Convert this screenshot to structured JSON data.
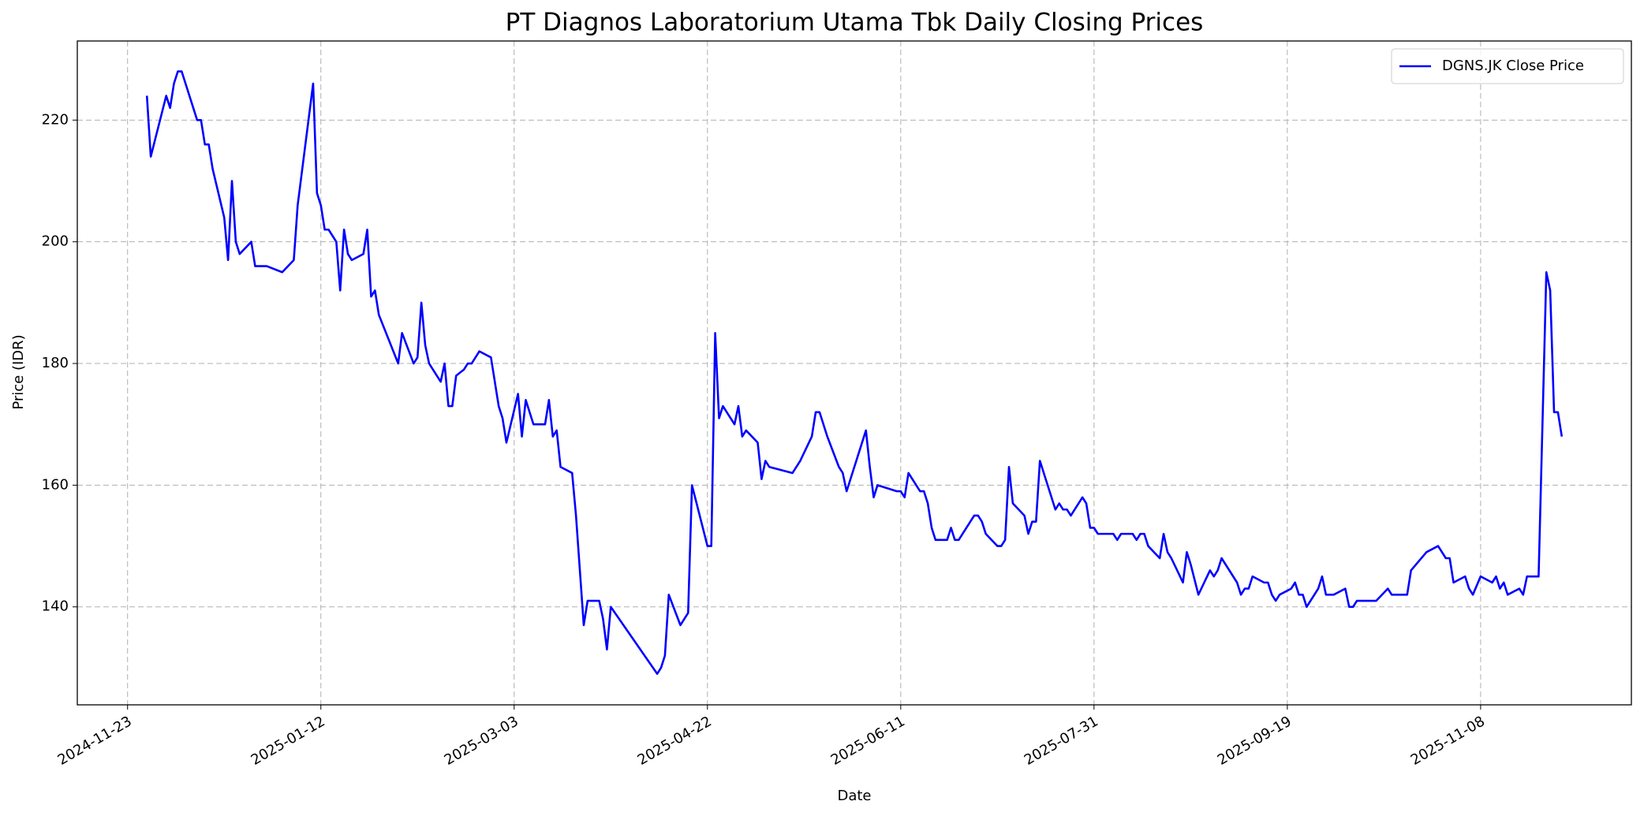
{
  "chart_data": {
    "type": "line",
    "title": "PT Diagnos Laboratorium Utama Tbk Daily Closing Prices",
    "xlabel": "Date",
    "ylabel": "Price (IDR)",
    "x": [
      "2024-11-28",
      "2024-11-29",
      "2024-12-03",
      "2024-12-04",
      "2024-12-05",
      "2024-12-06",
      "2024-12-07",
      "2024-12-11",
      "2024-12-12",
      "2024-12-13",
      "2024-12-14",
      "2024-12-15",
      "2024-12-18",
      "2024-12-19",
      "2024-12-20",
      "2024-12-21",
      "2024-12-22",
      "2024-12-25",
      "2024-12-26",
      "2024-12-29",
      "2025-01-02",
      "2025-01-05",
      "2025-01-06",
      "2025-01-10",
      "2025-01-11",
      "2025-01-12",
      "2025-01-13",
      "2025-01-14",
      "2025-01-16",
      "2025-01-17",
      "2025-01-18",
      "2025-01-19",
      "2025-01-20",
      "2025-01-23",
      "2025-01-24",
      "2025-01-25",
      "2025-01-26",
      "2025-01-27",
      "2025-02-01",
      "2025-02-02",
      "2025-02-05",
      "2025-02-06",
      "2025-02-07",
      "2025-02-08",
      "2025-02-09",
      "2025-02-12",
      "2025-02-13",
      "2025-02-14",
      "2025-02-15",
      "2025-02-16",
      "2025-02-18",
      "2025-02-19",
      "2025-02-20",
      "2025-02-22",
      "2025-02-25",
      "2025-02-27",
      "2025-02-28",
      "2025-03-01",
      "2025-03-04",
      "2025-03-05",
      "2025-03-06",
      "2025-03-08",
      "2025-03-11",
      "2025-03-12",
      "2025-03-13",
      "2025-03-14",
      "2025-03-15",
      "2025-03-18",
      "2025-03-19",
      "2025-03-21",
      "2025-03-22",
      "2025-03-25",
      "2025-03-26",
      "2025-03-27",
      "2025-03-28",
      "2025-04-09",
      "2025-04-10",
      "2025-04-11",
      "2025-04-12",
      "2025-04-15",
      "2025-04-17",
      "2025-04-18",
      "2025-04-22",
      "2025-04-23",
      "2025-04-24",
      "2025-04-25",
      "2025-04-26",
      "2025-04-29",
      "2025-04-30",
      "2025-05-01",
      "2025-05-02",
      "2025-05-05",
      "2025-05-06",
      "2025-05-07",
      "2025-05-08",
      "2025-05-14",
      "2025-05-16",
      "2025-05-19",
      "2025-05-20",
      "2025-05-21",
      "2025-05-23",
      "2025-05-26",
      "2025-05-27",
      "2025-05-28",
      "2025-06-02",
      "2025-06-03",
      "2025-06-04",
      "2025-06-05",
      "2025-06-10",
      "2025-06-11",
      "2025-06-12",
      "2025-06-13",
      "2025-06-16",
      "2025-06-17",
      "2025-06-18",
      "2025-06-19",
      "2025-06-20",
      "2025-06-23",
      "2025-06-24",
      "2025-06-25",
      "2025-06-26",
      "2025-06-30",
      "2025-07-01",
      "2025-07-02",
      "2025-07-03",
      "2025-07-06",
      "2025-07-07",
      "2025-07-08",
      "2025-07-09",
      "2025-07-10",
      "2025-07-13",
      "2025-07-14",
      "2025-07-15",
      "2025-07-16",
      "2025-07-17",
      "2025-07-21",
      "2025-07-22",
      "2025-07-23",
      "2025-07-24",
      "2025-07-25",
      "2025-07-28",
      "2025-07-29",
      "2025-07-30",
      "2025-07-31",
      "2025-08-01",
      "2025-08-05",
      "2025-08-06",
      "2025-08-07",
      "2025-08-10",
      "2025-08-11",
      "2025-08-12",
      "2025-08-13",
      "2025-08-14",
      "2025-08-17",
      "2025-08-18",
      "2025-08-19",
      "2025-08-20",
      "2025-08-23",
      "2025-08-24",
      "2025-08-25",
      "2025-08-27",
      "2025-08-30",
      "2025-08-31",
      "2025-09-01",
      "2025-09-02",
      "2025-09-06",
      "2025-09-07",
      "2025-09-08",
      "2025-09-09",
      "2025-09-10",
      "2025-09-13",
      "2025-09-14",
      "2025-09-15",
      "2025-09-16",
      "2025-09-17",
      "2025-09-20",
      "2025-09-21",
      "2025-09-22",
      "2025-09-23",
      "2025-09-24",
      "2025-09-27",
      "2025-09-28",
      "2025-09-29",
      "2025-10-01",
      "2025-10-04",
      "2025-10-05",
      "2025-10-06",
      "2025-10-07",
      "2025-10-11",
      "2025-10-12",
      "2025-10-15",
      "2025-10-16",
      "2025-10-20",
      "2025-10-21",
      "2025-10-25",
      "2025-10-28",
      "2025-10-30",
      "2025-10-31",
      "2025-11-01",
      "2025-11-04",
      "2025-11-05",
      "2025-11-06",
      "2025-11-08",
      "2025-11-11",
      "2025-11-12",
      "2025-11-13",
      "2025-11-14",
      "2025-11-15",
      "2025-11-18",
      "2025-11-19",
      "2025-11-20",
      "2025-11-23",
      "2025-11-25",
      "2025-11-26",
      "2025-11-27",
      "2025-11-28",
      "2025-11-29"
    ],
    "series": [
      {
        "name": "DGNS.JK Close Price",
        "color": "#0000ff",
        "values": [
          224,
          214,
          224,
          222,
          226,
          228,
          228,
          220,
          220,
          216,
          216,
          212,
          204,
          197,
          210,
          200,
          198,
          200,
          196,
          196,
          195,
          197,
          206,
          226,
          208,
          206,
          202,
          202,
          200,
          192,
          202,
          198,
          197,
          198,
          202,
          191,
          192,
          188,
          180,
          185,
          180,
          181,
          190,
          183,
          180,
          177,
          180,
          173,
          173,
          178,
          179,
          180,
          180,
          182,
          181,
          173,
          171,
          167,
          175,
          168,
          174,
          170,
          170,
          174,
          168,
          169,
          163,
          162,
          155,
          137,
          141,
          141,
          138,
          133,
          140,
          129,
          130,
          132,
          142,
          137,
          139,
          160,
          150,
          150,
          185,
          171,
          173,
          170,
          173,
          168,
          169,
          167,
          161,
          164,
          163,
          162,
          164,
          168,
          172,
          172,
          168,
          163,
          162,
          159,
          169,
          163,
          158,
          160,
          159,
          159,
          158,
          162,
          159,
          159,
          157,
          153,
          151,
          151,
          153,
          151,
          151,
          155,
          155,
          154,
          152,
          150,
          150,
          151,
          163,
          157,
          155,
          152,
          154,
          154,
          164,
          156,
          157,
          156,
          156,
          155,
          158,
          157,
          153,
          153,
          152,
          152,
          151,
          152,
          152,
          151,
          152,
          152,
          150,
          148,
          152,
          149,
          148,
          144,
          149,
          147,
          142,
          146,
          145,
          146,
          148,
          144,
          142,
          143,
          143,
          145,
          144,
          144,
          142,
          141,
          142,
          143,
          144,
          142,
          142,
          140,
          143,
          145,
          142,
          142,
          143,
          140,
          140,
          141,
          141,
          141,
          143,
          142,
          142,
          146,
          149,
          150,
          148,
          148,
          144,
          145,
          143,
          142,
          145,
          144,
          145,
          143,
          144,
          142,
          143,
          142,
          145,
          145,
          195,
          192,
          172,
          172,
          168
        ]
      }
    ],
    "xlim": [
      "2024-11-10",
      "2025-12-17"
    ],
    "xticks": [
      "2024-11-23",
      "2025-01-12",
      "2025-03-03",
      "2025-04-22",
      "2025-06-11",
      "2025-07-31",
      "2025-09-19",
      "2025-11-08"
    ],
    "ylim": [
      123.9,
      233
    ],
    "yticks": [
      140,
      160,
      180,
      200,
      220
    ],
    "grid": true,
    "legend": "upper right"
  }
}
